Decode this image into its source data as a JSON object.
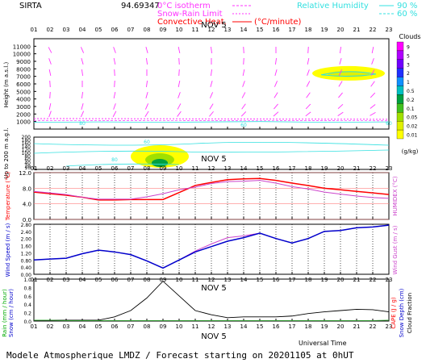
{
  "header": {
    "station": "SIRTA",
    "coords": "94.69347",
    "legend_isotherm": "0°C isotherm",
    "legend_snow_rain": "Snow-Rain Limit",
    "legend_convective": "Convective Heat.",
    "legend_convective_unit": "(°C/minute)",
    "legend_rh": "Relative Humidity",
    "legend_rh_90": "90 %",
    "legend_rh_60": "60 %"
  },
  "footer": {
    "title": "Modele Atmospherique LMDZ / Forecast starting on 20201105 at 0hUT",
    "universal_time": "Universal Time"
  },
  "colors": {
    "isotherm": "#ff33ff",
    "convective": "#ff0000",
    "rh": "#33e0e0",
    "temp": "#ff0000",
    "humidex": "#cc44cc",
    "wind": "#0000cc",
    "gust": "#cc44cc",
    "precip": "#000000"
  },
  "chart_data": [
    {
      "type": "heatmap",
      "name": "clouds",
      "date_label": "NOV  5",
      "x_hours": [
        "01",
        "02",
        "03",
        "04",
        "05",
        "06",
        "07",
        "08",
        "09",
        "10",
        "11",
        "12",
        "13",
        "14",
        "15",
        "16",
        "17",
        "18",
        "19",
        "20",
        "21",
        "22",
        "23"
      ],
      "y_label": "Height (m a.s.l.)",
      "y_ticks_upper": [
        1000,
        2000,
        3000,
        4000,
        5000,
        6000,
        7000,
        8000,
        9000,
        10000,
        11000
      ],
      "y_label_lower": "Up to 200 m a.g.l.",
      "y_ticks_lower": [
        10,
        20,
        40,
        60,
        80,
        100,
        120,
        140,
        160,
        180,
        200
      ],
      "colorbar_title": "Clouds",
      "colorbar_unit": "(g/kg)",
      "colorbar_ticks": [
        "9",
        "5",
        "3",
        "2",
        "1",
        "0.5",
        "0.2",
        "0.1",
        "0.05",
        "0.02",
        "0.01"
      ],
      "colorbar_colors": [
        "#ff00ff",
        "#b000ff",
        "#7000ff",
        "#2030ff",
        "#1090ff",
        "#00c0c0",
        "#00a040",
        "#40c020",
        "#a0e000",
        "#e0f000",
        "#ffff00"
      ],
      "rh_labels": [
        "80",
        "60",
        "60",
        "80",
        "60"
      ],
      "wind_arrows": "estimated wind barbs per hour and level"
    },
    {
      "type": "line",
      "name": "temperature",
      "date_label": "NOV  5",
      "x_hours": [
        "01",
        "02",
        "03",
        "04",
        "05",
        "06",
        "07",
        "08",
        "09",
        "10",
        "11",
        "12",
        "13",
        "14",
        "15",
        "16",
        "17",
        "18",
        "19",
        "20",
        "21",
        "22",
        "23"
      ],
      "ylabel_left": "Temperature (°C)",
      "ylabel_right": "HUMIDEX (°C)",
      "y_ticks": [
        "0.0",
        "4.0",
        "8.0",
        "12.0"
      ],
      "ylim": [
        0,
        12
      ],
      "series": [
        {
          "name": "Temperature",
          "values": [
            7.0,
            6.6,
            6.2,
            5.7,
            5.0,
            5.0,
            5.1,
            5.1,
            5.1,
            6.9,
            8.7,
            9.5,
            10.2,
            10.4,
            10.5,
            10.0,
            9.3,
            8.7,
            8.0,
            7.6,
            7.2,
            6.8,
            6.4
          ]
        },
        {
          "name": "HUMIDEX",
          "values": [
            7.2,
            6.8,
            6.4,
            5.7,
            5.2,
            5.2,
            5.2,
            5.8,
            6.6,
            7.6,
            8.3,
            9.2,
            9.7,
            9.8,
            10.0,
            9.3,
            8.4,
            7.8,
            7.0,
            6.5,
            6.0,
            5.6,
            5.4
          ]
        }
      ]
    },
    {
      "type": "line",
      "name": "wind",
      "date_label": "NOV  5",
      "x_hours": [
        "01",
        "02",
        "03",
        "04",
        "05",
        "06",
        "07",
        "08",
        "09",
        "10",
        "11",
        "12",
        "13",
        "14",
        "15",
        "16",
        "17",
        "18",
        "19",
        "20",
        "21",
        "22",
        "23"
      ],
      "ylabel_left": "Wind Speed (m / s)",
      "ylabel_right": "Wind Gust (m / s)",
      "y_ticks": [
        "0.00",
        "0.40",
        "0.80",
        "1.20",
        "1.60",
        "2.00",
        "2.40",
        "2.80"
      ],
      "ylim": [
        0,
        2.8
      ],
      "series": [
        {
          "name": "Wind Speed",
          "values": [
            0.8,
            0.85,
            0.9,
            1.15,
            1.35,
            1.25,
            1.1,
            0.75,
            0.35,
            0.8,
            1.25,
            1.55,
            1.85,
            2.05,
            2.3,
            2.0,
            1.75,
            2.0,
            2.4,
            2.45,
            2.6,
            2.65,
            2.75
          ]
        },
        {
          "name": "Wind Gust",
          "values": [
            0.8,
            0.85,
            0.9,
            1.15,
            1.35,
            1.25,
            1.1,
            0.75,
            0.35,
            0.8,
            1.3,
            1.7,
            2.05,
            2.15,
            2.3,
            2.0,
            1.75,
            2.0,
            2.4,
            2.45,
            2.6,
            2.65,
            2.75
          ]
        }
      ]
    },
    {
      "type": "line",
      "name": "precip",
      "date_label": "NOV  5",
      "x_hours": [
        "01",
        "02",
        "03",
        "04",
        "05",
        "06",
        "07",
        "08",
        "09",
        "10",
        "11",
        "12",
        "13",
        "14",
        "15",
        "16",
        "17",
        "18",
        "19",
        "20",
        "21",
        "22",
        "23"
      ],
      "ylabel_left_rain": "Rain (mm / hour)",
      "ylabel_left_snow": "Snow (cm / hour)",
      "ylabel_right_cape": "CAPE (J / g)",
      "ylabel_right_snowdepth": "Snow Depth (cm)",
      "ylabel_right_cloud": "Cloud Fraction",
      "y_ticks": [
        "0.0",
        "0.2",
        "0.4",
        "0.6",
        "0.8",
        "1.0"
      ],
      "ylim": [
        0,
        1.0
      ],
      "series": [
        {
          "name": "Cloud Fraction",
          "values": [
            0.02,
            0.02,
            0.02,
            0.02,
            0.02,
            0.1,
            0.25,
            0.55,
            0.95,
            0.6,
            0.25,
            0.15,
            0.08,
            0.1,
            0.1,
            0.1,
            0.12,
            0.18,
            0.22,
            0.25,
            0.28,
            0.27,
            0.22
          ]
        },
        {
          "name": "Rain",
          "values": [
            0.02,
            0.02,
            0.01,
            0.01,
            0.01,
            0.01,
            0.01,
            0.01,
            0.01,
            0.01,
            0.01,
            0.01,
            0.01,
            0.01,
            0.01,
            0.01,
            0.01,
            0.01,
            0.01,
            0.01,
            0.01,
            0.01,
            0.02
          ]
        }
      ]
    }
  ]
}
